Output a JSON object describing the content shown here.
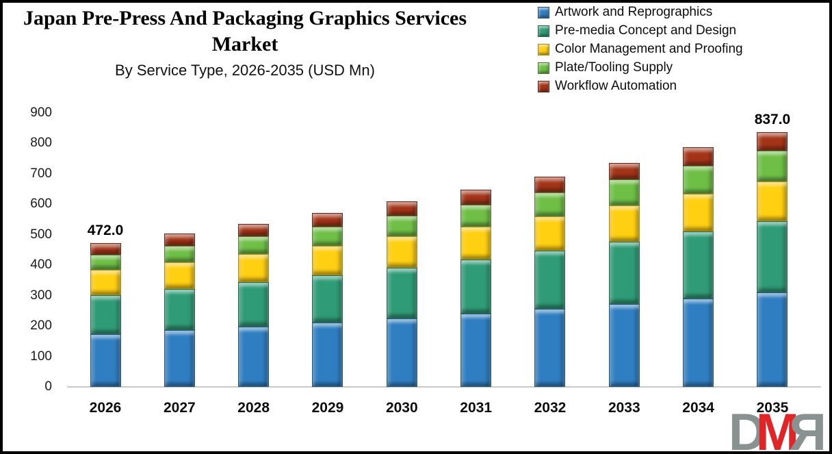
{
  "chart_data": {
    "type": "bar",
    "stacked": true,
    "title": "Japan Pre-Press And Packaging Graphics Services Market",
    "subtitle": "By Service Type, 2026-2035 (USD Mn)",
    "categories": [
      "2026",
      "2027",
      "2028",
      "2029",
      "2030",
      "2031",
      "2032",
      "2033",
      "2034",
      "2035"
    ],
    "series": [
      {
        "name": "Artwork and Reprographics",
        "color": "#2F7EC1",
        "values": [
          174,
          186,
          198,
          211,
          225,
          240,
          256,
          273,
          291,
          310
        ]
      },
      {
        "name": "Pre-media Concept and Design",
        "color": "#2F9B77",
        "values": [
          127,
          136,
          146,
          156,
          167,
          178,
          191,
          204,
          219,
          234
        ]
      },
      {
        "name": "Color Management and Proofing",
        "color": "#FFCF12",
        "values": [
          84,
          88,
          93,
          97,
          102,
          107,
          112,
          118,
          124,
          130
        ]
      },
      {
        "name": "Plate/Tooling Supply",
        "color": "#6FBF46",
        "values": [
          49,
          53,
          57,
          62,
          68,
          73,
          79,
          86,
          93,
          101
        ]
      },
      {
        "name": "Workflow Automation",
        "color": "#A43418",
        "values": [
          38,
          40,
          42,
          45,
          47,
          50,
          53,
          55,
          59,
          62
        ]
      }
    ],
    "totals": [
      472,
      503,
      536,
      571,
      609,
      648,
      691,
      736,
      786,
      837
    ],
    "data_labels": [
      {
        "category": "2026",
        "text": "472.0"
      },
      {
        "category": "2035",
        "text": "837.0"
      }
    ],
    "ylim": [
      0,
      900
    ],
    "yticks": [
      "0",
      "100",
      "200",
      "300",
      "400",
      "500",
      "600",
      "700",
      "800",
      "900"
    ],
    "grid": false,
    "legend_position": "top-right"
  },
  "logo": {
    "letters": [
      "D",
      "M",
      "R"
    ],
    "colors": {
      "d": "#8A9191",
      "m": "#E02528",
      "r": "#8A9191"
    }
  }
}
